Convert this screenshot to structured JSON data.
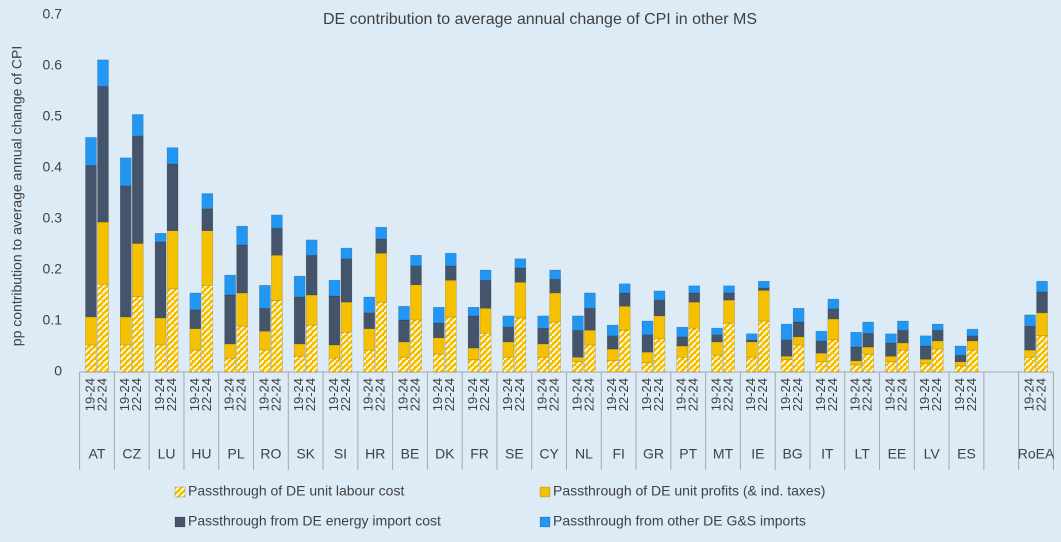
{
  "chart_data": {
    "type": "bar",
    "stacked": true,
    "title": "DE contribution to average annual change of CPI in other MS",
    "y_label": "pp contribution to average annual change of CPI",
    "groups": [
      "AT",
      "CZ",
      "LU",
      "HU",
      "PL",
      "RO",
      "SK",
      "SI",
      "HR",
      "BE",
      "DK",
      "FR",
      "SE",
      "CY",
      "NL",
      "FI",
      "GR",
      "PT",
      "MT",
      "IE",
      "BG",
      "IT",
      "LT",
      "EE",
      "LV",
      "ES",
      null,
      "RoEA"
    ],
    "categories": [
      "19-24",
      "22-24",
      "19-24",
      "22-24",
      "19-24",
      "22-24",
      "19-24",
      "22-24",
      "19-24",
      "22-24",
      "19-24",
      "22-24",
      "19-24",
      "22-24",
      "19-24",
      "22-24",
      "19-24",
      "22-24",
      "19-24",
      "22-24",
      "19-24",
      "22-24",
      "19-24",
      "22-24",
      "19-24",
      "22-24",
      "19-24",
      "22-24",
      "19-24",
      "22-24",
      "19-24",
      "22-24",
      "19-24",
      "22-24",
      "19-24",
      "22-24",
      "19-24",
      "22-24",
      "19-24",
      "22-24",
      "19-24",
      "22-24",
      "19-24",
      "22-24",
      "19-24",
      "22-24",
      "19-24",
      "22-24",
      "19-24",
      "22-24",
      "19-24",
      "22-24",
      null,
      null,
      "19-24",
      "22-24"
    ],
    "series": [
      {
        "name": "Passthrough of DE unit labour cost",
        "color": "#f5c000",
        "hatch": true,
        "values": [
          0.053,
          0.172,
          0.053,
          0.148,
          0.053,
          0.163,
          0.043,
          0.17,
          0.027,
          0.09,
          0.043,
          0.14,
          0.031,
          0.092,
          0.027,
          0.078,
          0.043,
          0.137,
          0.029,
          0.102,
          0.035,
          0.108,
          0.024,
          0.076,
          0.029,
          0.106,
          0.029,
          0.098,
          0.02,
          0.053,
          0.022,
          0.082,
          0.018,
          0.065,
          0.029,
          0.086,
          0.033,
          0.096,
          0.029,
          0.1,
          0.024,
          0.053,
          0.02,
          0.063,
          0.014,
          0.035,
          0.02,
          0.043,
          0.016,
          0.045,
          0.012,
          0.043,
          null,
          null,
          0.029,
          0.071
        ]
      },
      {
        "name": "Passthrough of DE unit profits (& ind. taxes)",
        "color": "#f5c000",
        "values": [
          0.055,
          0.122,
          0.055,
          0.104,
          0.053,
          0.114,
          0.042,
          0.107,
          0.028,
          0.065,
          0.037,
          0.089,
          0.024,
          0.059,
          0.026,
          0.059,
          0.042,
          0.096,
          0.03,
          0.069,
          0.032,
          0.072,
          0.023,
          0.049,
          0.03,
          0.07,
          0.026,
          0.057,
          0.009,
          0.029,
          0.023,
          0.047,
          0.021,
          0.045,
          0.022,
          0.051,
          0.026,
          0.045,
          0.03,
          0.06,
          0.007,
          0.016,
          0.017,
          0.041,
          0.008,
          0.014,
          0.011,
          0.014,
          0.009,
          0.016,
          0.008,
          0.018,
          null,
          null,
          0.014,
          0.045
        ]
      },
      {
        "name": "Passthrough from DE energy import cost",
        "color": "#44546a",
        "values": [
          0.297,
          0.266,
          0.257,
          0.211,
          0.149,
          0.131,
          0.037,
          0.043,
          0.096,
          0.094,
          0.045,
          0.053,
          0.092,
          0.078,
          0.096,
          0.085,
          0.031,
          0.028,
          0.043,
          0.037,
          0.029,
          0.028,
          0.063,
          0.055,
          0.029,
          0.028,
          0.031,
          0.027,
          0.053,
          0.043,
          0.026,
          0.026,
          0.034,
          0.031,
          0.018,
          0.018,
          0.014,
          0.014,
          0.004,
          0.005,
          0.032,
          0.029,
          0.024,
          0.02,
          0.027,
          0.027,
          0.026,
          0.025,
          0.026,
          0.021,
          0.013,
          0.01,
          null,
          null,
          0.047,
          0.041
        ]
      },
      {
        "name": "Passthrough from other DE G&S imports",
        "color": "#2196f3",
        "values": [
          0.055,
          0.052,
          0.055,
          0.042,
          0.017,
          0.032,
          0.033,
          0.03,
          0.039,
          0.037,
          0.045,
          0.026,
          0.041,
          0.03,
          0.031,
          0.021,
          0.031,
          0.023,
          0.027,
          0.021,
          0.031,
          0.025,
          0.017,
          0.02,
          0.022,
          0.018,
          0.024,
          0.018,
          0.028,
          0.03,
          0.021,
          0.018,
          0.027,
          0.018,
          0.019,
          0.014,
          0.013,
          0.014,
          0.012,
          0.013,
          0.031,
          0.027,
          0.019,
          0.019,
          0.029,
          0.022,
          0.018,
          0.018,
          0.02,
          0.012,
          0.018,
          0.013,
          null,
          null,
          0.022,
          0.021
        ]
      }
    ],
    "ylim": [
      0,
      0.7
    ],
    "yticks": [
      0,
      0.1,
      0.2,
      0.3,
      0.4,
      0.5,
      0.6,
      0.7
    ],
    "grid": false
  }
}
